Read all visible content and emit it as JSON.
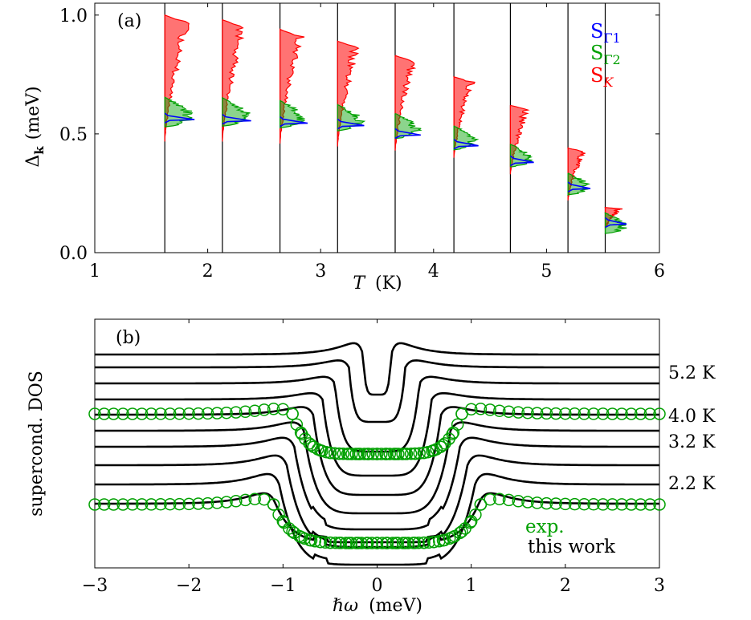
{
  "chart_data": [
    {
      "panel_label": "(a)",
      "type": "area",
      "xlabel_italic": "T",
      "xlabel_unit": "(K)",
      "ylabel": "(meV)",
      "ylabel_symbol": "Δ",
      "ylabel_subscript": "k",
      "xlim": [
        1,
        6
      ],
      "ylim": [
        0,
        1.05
      ],
      "xticks": [
        "1",
        "2",
        "3",
        "4",
        "5",
        "6"
      ],
      "yticks": [
        "0.0",
        "0.5",
        "1.0"
      ],
      "legend_position": "top-right",
      "legend": [
        {
          "main": "S",
          "sub": "Γ1",
          "color": "#0000ff"
        },
        {
          "main": "S",
          "sub": "Γ2",
          "color": "#00a000"
        },
        {
          "main": "S",
          "sub": "K",
          "sub_italic": true,
          "color": "#ff0000"
        }
      ],
      "series": [
        {
          "T": 1.62,
          "gamma1": 0.56,
          "gamma2": 0.6,
          "k_low": 0.47,
          "k_high": 1.0
        },
        {
          "T": 2.13,
          "gamma1": 0.555,
          "gamma2": 0.6,
          "k_low": 0.47,
          "k_high": 0.98
        },
        {
          "T": 2.64,
          "gamma1": 0.545,
          "gamma2": 0.59,
          "k_low": 0.46,
          "k_high": 0.94
        },
        {
          "T": 3.15,
          "gamma1": 0.535,
          "gamma2": 0.575,
          "k_low": 0.45,
          "k_high": 0.89
        },
        {
          "T": 3.66,
          "gamma1": 0.495,
          "gamma2": 0.54,
          "k_low": 0.43,
          "k_high": 0.83
        },
        {
          "T": 4.18,
          "gamma1": 0.45,
          "gamma2": 0.49,
          "k_low": 0.4,
          "k_high": 0.74
        },
        {
          "T": 4.68,
          "gamma1": 0.38,
          "gamma2": 0.415,
          "k_low": 0.33,
          "k_high": 0.62
        },
        {
          "T": 5.19,
          "gamma1": 0.27,
          "gamma2": 0.295,
          "k_low": 0.22,
          "k_high": 0.44
        },
        {
          "T": 5.52,
          "gamma1": 0.12,
          "gamma2": 0.13,
          "k_low": 0.1,
          "k_high": 0.19
        }
      ]
    },
    {
      "panel_label": "(b)",
      "type": "line",
      "xlabel_symbol": "ℏω",
      "xlabel_unit": "(meV)",
      "ylabel": "supercond. DOS",
      "xlim": [
        -3,
        3
      ],
      "xticks": [
        "−3",
        "−2",
        "−1",
        "0",
        "1",
        "2",
        "3"
      ],
      "temperature_labels": [
        "5.2 K",
        "4.0 K",
        "3.2 K",
        "2.2 K"
      ],
      "legend_position": "bottom-right",
      "legend": [
        {
          "label": "exp.",
          "color": "#00a000"
        },
        {
          "label": "this work",
          "color": "#000000"
        }
      ],
      "series": [
        {
          "gap": 0.15,
          "broad": 0.06,
          "base": 442,
          "depth": 50,
          "peak": 26
        },
        {
          "gap": 0.3,
          "broad": 0.08,
          "base": 458,
          "depth": 68,
          "peak": 18
        },
        {
          "gap": 0.45,
          "broad": 0.09,
          "base": 478,
          "depth": 85,
          "peak": 18
        },
        {
          "gap": 0.58,
          "broad": 0.1,
          "base": 498,
          "depth": 95,
          "peak": 18
        },
        {
          "gap": 0.68,
          "broad": 0.1,
          "base": 517,
          "depth": 100,
          "peak": 22
        },
        {
          "gap": 0.78,
          "broad": 0.1,
          "base": 537,
          "depth": 103,
          "peak": 24
        },
        {
          "gap": 0.88,
          "broad": 0.1,
          "base": 557,
          "depth": 103,
          "peak": 26,
          "shoulder": 0.62
        },
        {
          "gap": 0.96,
          "broad": 0.1,
          "base": 580,
          "depth": 102,
          "peak": 28,
          "shoulder": 0.62
        },
        {
          "gap": 1.04,
          "broad": 0.1,
          "base": 604,
          "depth": 100,
          "peak": 30,
          "shoulder": 0.6
        },
        {
          "gap": 1.08,
          "broad": 0.1,
          "base": 628,
          "depth": 48,
          "peak": 30,
          "shoulder": 0.6
        }
      ],
      "experimental": [
        {
          "temperature": "4.0 K",
          "gap": 0.9,
          "broad": 0.2,
          "base": 516,
          "depth": 50,
          "peak": 22
        },
        {
          "temperature": "2.2 K",
          "gap": 1.1,
          "broad": 0.2,
          "base": 629,
          "depth": 48,
          "peak": 24
        }
      ]
    }
  ]
}
